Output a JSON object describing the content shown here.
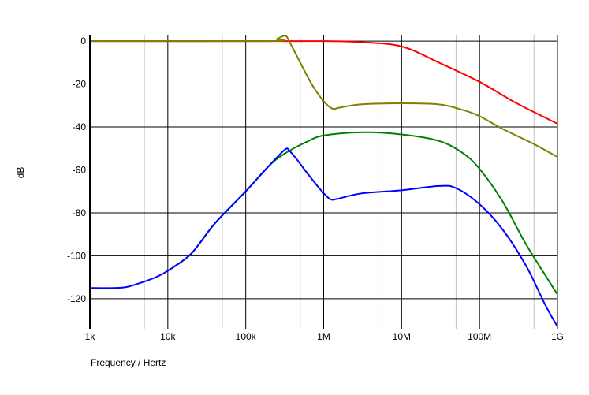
{
  "chart_data": {
    "type": "line",
    "title": "",
    "xlabel": "Frequency / Hertz",
    "ylabel": "dB",
    "xscale": "log",
    "xlim": [
      1000,
      1000000000
    ],
    "ylim": [
      -134,
      2.6
    ],
    "grid": true,
    "x_ticks": [
      {
        "value": 1000,
        "label": "1k"
      },
      {
        "value": 10000,
        "label": "10k"
      },
      {
        "value": 100000,
        "label": "100k"
      },
      {
        "value": 1000000,
        "label": "1M"
      },
      {
        "value": 10000000,
        "label": "10M"
      },
      {
        "value": 100000000,
        "label": "100M"
      },
      {
        "value": 1000000000,
        "label": "1G"
      }
    ],
    "y_ticks": [
      {
        "value": 0,
        "label": "0"
      },
      {
        "value": -20,
        "label": "-20"
      },
      {
        "value": -40,
        "label": "-40"
      },
      {
        "value": -60,
        "label": "-60"
      },
      {
        "value": -80,
        "label": "-80"
      },
      {
        "value": -100,
        "label": "-100"
      },
      {
        "value": -120,
        "label": "-120"
      }
    ],
    "series": [
      {
        "name": "red",
        "color": "#ff0000",
        "x": [
          1000,
          100000,
          1000000,
          3000000,
          10000000,
          30000000,
          100000000,
          300000000,
          1000000000
        ],
        "y": [
          0,
          0,
          0,
          -0.5,
          -2.5,
          -10,
          -19,
          -29,
          -38.5
        ]
      },
      {
        "name": "olive",
        "color": "#808000",
        "x": [
          1000,
          200000,
          250000,
          320000,
          360000,
          500000,
          700000,
          1000000,
          1300000,
          1600000,
          3000000,
          10000000,
          30000000,
          60000000,
          100000000,
          200000000,
          500000000,
          1000000000
        ],
        "y": [
          0,
          0,
          1,
          2.5,
          0,
          -10,
          -20,
          -28,
          -31.5,
          -31,
          -29.5,
          -29,
          -29.5,
          -32,
          -35,
          -41,
          -48,
          -54
        ]
      },
      {
        "name": "green",
        "color": "#008000",
        "x": [
          12000,
          20000,
          40000,
          100000,
          200000,
          330000,
          600000,
          1000000,
          3000000,
          10000000,
          30000000,
          60000000,
          100000000,
          200000000,
          400000000,
          1000000000
        ],
        "y": [
          -105,
          -99,
          -85,
          -70,
          -58,
          -52,
          -47,
          -44,
          -42.5,
          -43.5,
          -46.5,
          -52,
          -59.5,
          -75,
          -95,
          -118
        ]
      },
      {
        "name": "blue",
        "color": "#0000ff",
        "x": [
          1000,
          2000,
          3000,
          5000,
          7000,
          10000,
          20000,
          40000,
          100000,
          200000,
          320000,
          360000,
          450000,
          600000,
          900000,
          1200000,
          1500000,
          3000000,
          10000000,
          30000000,
          50000000,
          100000000,
          200000000,
          400000000,
          700000000,
          1000000000
        ],
        "y": [
          -115,
          -115,
          -114.5,
          -112,
          -110,
          -107,
          -99,
          -85,
          -70,
          -58,
          -50.5,
          -51,
          -55,
          -61,
          -69,
          -73.5,
          -73.5,
          -71,
          -69.5,
          -67.5,
          -68.5,
          -76,
          -88,
          -105,
          -123,
          -133
        ]
      }
    ]
  }
}
